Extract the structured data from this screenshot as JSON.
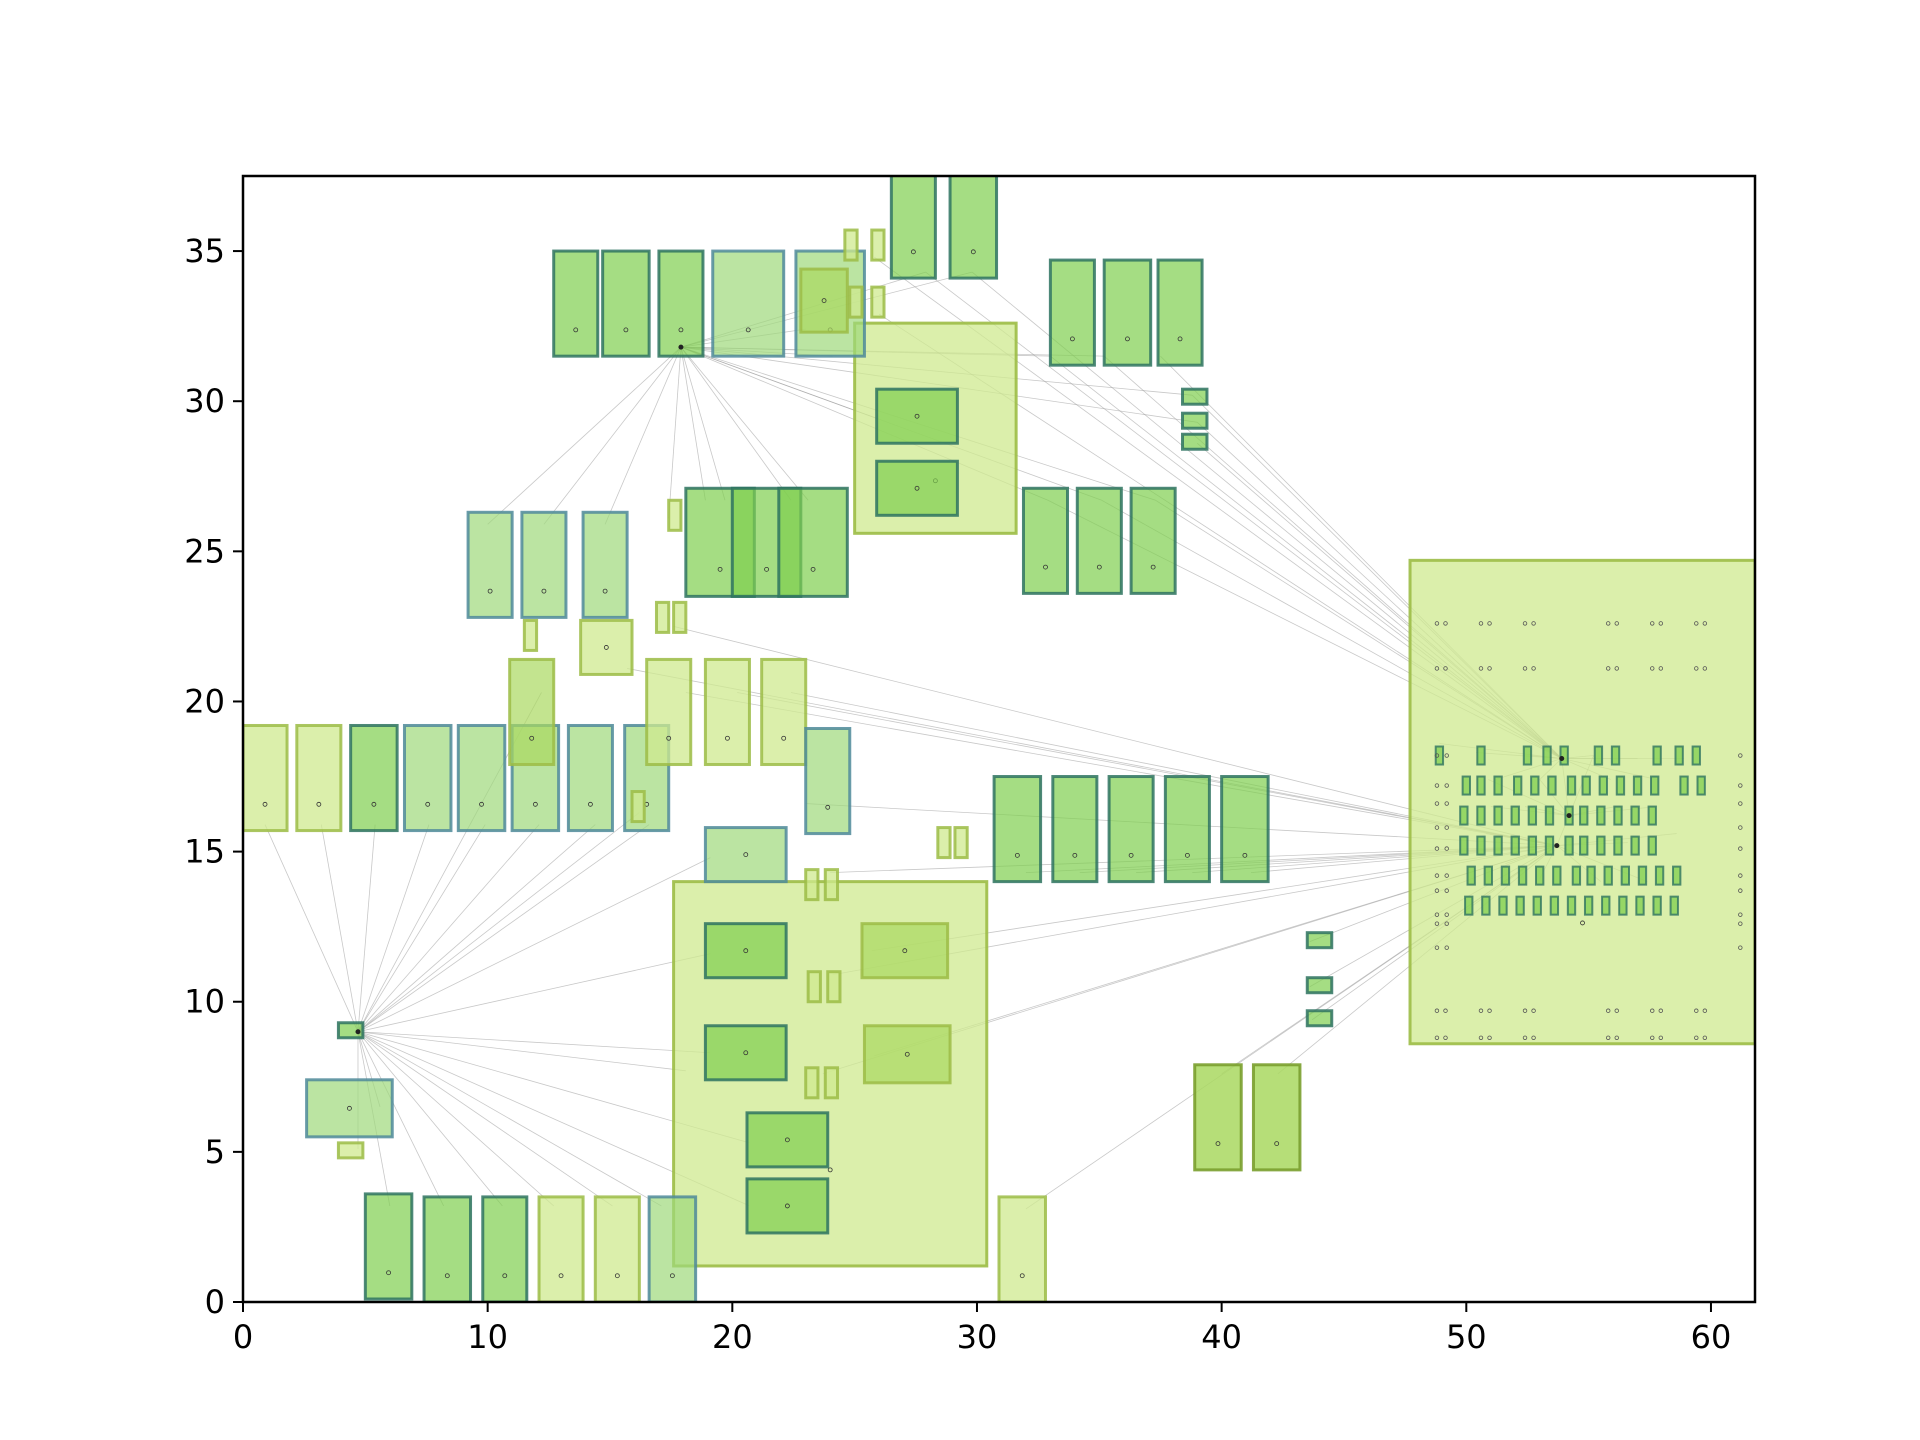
{
  "chart_data": {
    "type": "scatter",
    "title": "",
    "xlabel": "",
    "ylabel": "",
    "xlim": [
      0,
      61.8
    ],
    "ylim": [
      0,
      37.5
    ],
    "grid": false,
    "x_ticks": [
      0,
      10,
      20,
      30,
      40,
      50,
      60
    ],
    "y_ticks": [
      0,
      5,
      10,
      15,
      20,
      25,
      30,
      35
    ],
    "colors": {
      "fill_dark": "#7fcf4f",
      "fill_mid": "#9ed97a",
      "fill_light": "#cfe98f",
      "edge_teal": "#2e7360",
      "edge_blue": "#4f8a9a",
      "edge_olive": "#9cbc46",
      "net_line": "#9a9a9a"
    },
    "blocks": [
      {
        "x": 0.0,
        "y": 15.7,
        "w": 1.8,
        "h": 3.5,
        "style": "light"
      },
      {
        "x": 2.2,
        "y": 15.7,
        "w": 1.8,
        "h": 3.5,
        "style": "light"
      },
      {
        "x": 4.4,
        "y": 15.7,
        "w": 1.9,
        "h": 3.5,
        "style": "dark"
      },
      {
        "x": 6.6,
        "y": 15.7,
        "w": 1.9,
        "h": 3.5,
        "style": "mid"
      },
      {
        "x": 8.8,
        "y": 15.7,
        "w": 1.9,
        "h": 3.5,
        "style": "mid"
      },
      {
        "x": 11.0,
        "y": 15.7,
        "w": 1.9,
        "h": 3.5,
        "style": "mid"
      },
      {
        "x": 13.3,
        "y": 15.7,
        "w": 1.8,
        "h": 3.5,
        "style": "mid"
      },
      {
        "x": 15.6,
        "y": 15.7,
        "w": 1.8,
        "h": 3.5,
        "style": "mid"
      },
      {
        "x": 10.9,
        "y": 17.9,
        "w": 1.8,
        "h": 3.5,
        "style": "lightdark"
      },
      {
        "x": 16.5,
        "y": 17.9,
        "w": 1.8,
        "h": 3.5,
        "style": "light"
      },
      {
        "x": 18.9,
        "y": 17.9,
        "w": 1.8,
        "h": 3.5,
        "style": "light"
      },
      {
        "x": 21.2,
        "y": 17.9,
        "w": 1.8,
        "h": 3.5,
        "style": "light"
      },
      {
        "x": 13.8,
        "y": 20.9,
        "w": 2.1,
        "h": 1.8,
        "style": "light"
      },
      {
        "x": 11.5,
        "y": 21.7,
        "w": 0.5,
        "h": 1.0,
        "style": "light"
      },
      {
        "x": 16.9,
        "y": 22.3,
        "w": 0.5,
        "h": 1.0,
        "style": "light"
      },
      {
        "x": 17.6,
        "y": 22.3,
        "w": 0.5,
        "h": 1.0,
        "style": "light"
      },
      {
        "x": 15.9,
        "y": 16.0,
        "w": 0.5,
        "h": 1.0,
        "style": "light"
      },
      {
        "x": 9.2,
        "y": 22.8,
        "w": 1.8,
        "h": 3.5,
        "style": "mid"
      },
      {
        "x": 11.4,
        "y": 22.8,
        "w": 1.8,
        "h": 3.5,
        "style": "mid"
      },
      {
        "x": 13.9,
        "y": 22.8,
        "w": 1.8,
        "h": 3.5,
        "style": "mid"
      },
      {
        "x": 17.4,
        "y": 25.7,
        "w": 0.5,
        "h": 1.0,
        "style": "light"
      },
      {
        "x": 18.1,
        "y": 23.5,
        "w": 2.8,
        "h": 3.6,
        "style": "dark"
      },
      {
        "x": 20.0,
        "y": 23.5,
        "w": 2.8,
        "h": 3.6,
        "style": "dark"
      },
      {
        "x": 21.9,
        "y": 23.5,
        "w": 2.8,
        "h": 3.6,
        "style": "dark"
      },
      {
        "x": 12.7,
        "y": 31.5,
        "w": 1.8,
        "h": 3.5,
        "style": "dark"
      },
      {
        "x": 14.7,
        "y": 31.5,
        "w": 1.9,
        "h": 3.5,
        "style": "dark"
      },
      {
        "x": 17.0,
        "y": 31.5,
        "w": 1.8,
        "h": 3.5,
        "style": "dark"
      },
      {
        "x": 19.2,
        "y": 31.5,
        "w": 2.9,
        "h": 3.5,
        "style": "mid"
      },
      {
        "x": 22.6,
        "y": 31.5,
        "w": 2.8,
        "h": 3.5,
        "style": "mid"
      },
      {
        "x": 22.8,
        "y": 32.3,
        "w": 1.9,
        "h": 2.1,
        "style": "lightdark"
      },
      {
        "x": 24.6,
        "y": 34.7,
        "w": 0.5,
        "h": 1.0,
        "style": "light"
      },
      {
        "x": 25.7,
        "y": 34.7,
        "w": 0.5,
        "h": 1.0,
        "style": "light"
      },
      {
        "x": 24.8,
        "y": 32.8,
        "w": 0.5,
        "h": 1.0,
        "style": "light"
      },
      {
        "x": 25.7,
        "y": 32.8,
        "w": 0.5,
        "h": 1.0,
        "style": "light"
      },
      {
        "x": 26.5,
        "y": 34.1,
        "w": 1.8,
        "h": 3.5,
        "style": "dark"
      },
      {
        "x": 28.9,
        "y": 34.1,
        "w": 1.9,
        "h": 3.5,
        "style": "dark"
      },
      {
        "x": 25.0,
        "y": 25.6,
        "w": 6.6,
        "h": 7.0,
        "style": "bigplate"
      },
      {
        "x": 25.9,
        "y": 28.6,
        "w": 3.3,
        "h": 1.8,
        "style": "dark"
      },
      {
        "x": 25.9,
        "y": 26.2,
        "w": 3.3,
        "h": 1.8,
        "style": "dark"
      },
      {
        "x": 33.0,
        "y": 31.2,
        "w": 1.8,
        "h": 3.5,
        "style": "dark"
      },
      {
        "x": 35.2,
        "y": 31.2,
        "w": 1.9,
        "h": 3.5,
        "style": "dark"
      },
      {
        "x": 37.4,
        "y": 31.2,
        "w": 1.8,
        "h": 3.5,
        "style": "dark"
      },
      {
        "x": 38.4,
        "y": 29.9,
        "w": 1.0,
        "h": 0.5,
        "style": "dark"
      },
      {
        "x": 38.4,
        "y": 29.1,
        "w": 1.0,
        "h": 0.5,
        "style": "dark"
      },
      {
        "x": 38.4,
        "y": 28.4,
        "w": 1.0,
        "h": 0.5,
        "style": "dark"
      },
      {
        "x": 31.9,
        "y": 23.6,
        "w": 1.8,
        "h": 3.5,
        "style": "dark"
      },
      {
        "x": 34.1,
        "y": 23.6,
        "w": 1.8,
        "h": 3.5,
        "style": "dark"
      },
      {
        "x": 36.3,
        "y": 23.6,
        "w": 1.8,
        "h": 3.5,
        "style": "dark"
      },
      {
        "x": 23.0,
        "y": 15.6,
        "w": 1.8,
        "h": 3.5,
        "style": "mid"
      },
      {
        "x": 18.9,
        "y": 14.0,
        "w": 3.3,
        "h": 1.8,
        "style": "mid"
      },
      {
        "x": 28.4,
        "y": 14.8,
        "w": 0.5,
        "h": 1.0,
        "style": "light"
      },
      {
        "x": 29.1,
        "y": 14.8,
        "w": 0.5,
        "h": 1.0,
        "style": "light"
      },
      {
        "x": 30.7,
        "y": 14.0,
        "w": 1.9,
        "h": 3.5,
        "style": "dark"
      },
      {
        "x": 33.1,
        "y": 14.0,
        "w": 1.8,
        "h": 3.5,
        "style": "dark"
      },
      {
        "x": 35.4,
        "y": 14.0,
        "w": 1.8,
        "h": 3.5,
        "style": "dark"
      },
      {
        "x": 37.7,
        "y": 14.0,
        "w": 1.8,
        "h": 3.5,
        "style": "dark"
      },
      {
        "x": 40.0,
        "y": 14.0,
        "w": 1.9,
        "h": 3.5,
        "style": "dark"
      },
      {
        "x": 17.6,
        "y": 1.2,
        "w": 12.8,
        "h": 12.8,
        "style": "bigplate"
      },
      {
        "x": 23.0,
        "y": 13.4,
        "w": 0.5,
        "h": 1.0,
        "style": "light"
      },
      {
        "x": 23.8,
        "y": 13.4,
        "w": 0.5,
        "h": 1.0,
        "style": "light"
      },
      {
        "x": 18.9,
        "y": 10.8,
        "w": 3.3,
        "h": 1.8,
        "style": "dark"
      },
      {
        "x": 25.3,
        "y": 10.8,
        "w": 3.5,
        "h": 1.8,
        "style": "lightdark"
      },
      {
        "x": 23.1,
        "y": 10.0,
        "w": 0.5,
        "h": 1.0,
        "style": "light"
      },
      {
        "x": 23.9,
        "y": 10.0,
        "w": 0.5,
        "h": 1.0,
        "style": "light"
      },
      {
        "x": 18.9,
        "y": 7.4,
        "w": 3.3,
        "h": 1.8,
        "style": "dark"
      },
      {
        "x": 25.4,
        "y": 7.3,
        "w": 3.5,
        "h": 1.9,
        "style": "lightdark"
      },
      {
        "x": 23.0,
        "y": 6.8,
        "w": 0.5,
        "h": 1.0,
        "style": "light"
      },
      {
        "x": 23.8,
        "y": 6.8,
        "w": 0.5,
        "h": 1.0,
        "style": "light"
      },
      {
        "x": 20.6,
        "y": 4.5,
        "w": 3.3,
        "h": 1.8,
        "style": "dark"
      },
      {
        "x": 20.6,
        "y": 2.3,
        "w": 3.3,
        "h": 1.8,
        "style": "dark"
      },
      {
        "x": 3.9,
        "y": 8.8,
        "w": 1.0,
        "h": 0.5,
        "style": "dark"
      },
      {
        "x": 2.6,
        "y": 5.5,
        "w": 3.5,
        "h": 1.9,
        "style": "mid"
      },
      {
        "x": 3.9,
        "y": 4.8,
        "w": 1.0,
        "h": 0.5,
        "style": "light"
      },
      {
        "x": 5.0,
        "y": 0.1,
        "w": 1.9,
        "h": 3.5,
        "style": "dark"
      },
      {
        "x": 7.4,
        "y": 0.0,
        "w": 1.9,
        "h": 3.5,
        "style": "dark"
      },
      {
        "x": 9.8,
        "y": 0.0,
        "w": 1.8,
        "h": 3.5,
        "style": "dark"
      },
      {
        "x": 12.1,
        "y": 0.0,
        "w": 1.8,
        "h": 3.5,
        "style": "light"
      },
      {
        "x": 14.4,
        "y": 0.0,
        "w": 1.8,
        "h": 3.5,
        "style": "light"
      },
      {
        "x": 16.6,
        "y": 0.0,
        "w": 1.9,
        "h": 3.5,
        "style": "mid"
      },
      {
        "x": 30.9,
        "y": 0.0,
        "w": 1.9,
        "h": 3.5,
        "style": "light"
      },
      {
        "x": 38.9,
        "y": 4.4,
        "w": 1.9,
        "h": 3.5,
        "style": "olive"
      },
      {
        "x": 41.3,
        "y": 4.4,
        "w": 1.9,
        "h": 3.5,
        "style": "olive"
      },
      {
        "x": 43.5,
        "y": 11.8,
        "w": 1.0,
        "h": 0.5,
        "style": "dark"
      },
      {
        "x": 43.5,
        "y": 10.3,
        "w": 1.0,
        "h": 0.5,
        "style": "dark"
      },
      {
        "x": 43.5,
        "y": 9.2,
        "w": 1.0,
        "h": 0.5,
        "style": "dark"
      },
      {
        "x": 47.7,
        "y": 8.6,
        "w": 14.1,
        "h": 16.1,
        "style": "bigplate"
      }
    ],
    "hubs": [
      {
        "x": 17.9,
        "y": 31.8
      },
      {
        "x": 4.7,
        "y": 9.0
      },
      {
        "x": 53.9,
        "y": 18.1
      },
      {
        "x": 53.7,
        "y": 15.2
      },
      {
        "x": 54.2,
        "y": 16.2
      }
    ],
    "nets": [
      {
        "from": [
          17.9,
          31.8
        ],
        "to": [
          [
            10.0,
            25.9
          ],
          [
            12.3,
            25.9
          ],
          [
            14.8,
            25.9
          ],
          [
            17.4,
            26.1
          ],
          [
            18.9,
            26.7
          ],
          [
            19.7,
            26.7
          ],
          [
            22.4,
            26.7
          ],
          [
            23.1,
            26.7
          ],
          [
            23.0,
            32.4
          ],
          [
            24.1,
            31.5
          ],
          [
            26.0,
            29.4
          ],
          [
            27.9,
            34.3
          ],
          [
            29.8,
            34.3
          ],
          [
            33.0,
            31.5
          ],
          [
            35.2,
            31.5
          ],
          [
            38.8,
            30.2
          ],
          [
            39.0,
            29.3
          ],
          [
            32.9,
            26.7
          ],
          [
            35.1,
            26.7
          ],
          [
            37.3,
            26.7
          ]
        ]
      },
      {
        "from": [
          4.7,
          9.0
        ],
        "to": [
          [
            0.9,
            15.9
          ],
          [
            3.2,
            15.9
          ],
          [
            5.4,
            15.9
          ],
          [
            7.6,
            15.9
          ],
          [
            9.9,
            15.9
          ],
          [
            12.1,
            15.9
          ],
          [
            14.4,
            15.9
          ],
          [
            16.6,
            15.9
          ],
          [
            12.2,
            20.3
          ],
          [
            16.2,
            16.3
          ],
          [
            19.1,
            14.8
          ],
          [
            19.1,
            11.6
          ],
          [
            19.1,
            8.3
          ],
          [
            20.7,
            5.3
          ],
          [
            20.7,
            3.2
          ],
          [
            6.0,
            3.2
          ],
          [
            8.2,
            3.2
          ],
          [
            10.6,
            3.2
          ],
          [
            12.7,
            3.2
          ],
          [
            15.1,
            3.2
          ],
          [
            17.1,
            3.2
          ],
          [
            18.1,
            7.7
          ],
          [
            4.7,
            5.1
          ],
          [
            5.6,
            6.5
          ]
        ]
      },
      {
        "from": [
          53.9,
          18.1
        ],
        "to": [
          [
            27.9,
            34.3
          ],
          [
            29.8,
            34.3
          ],
          [
            33.0,
            31.5
          ],
          [
            35.2,
            31.5
          ],
          [
            37.5,
            31.5
          ],
          [
            38.8,
            30.2
          ],
          [
            39.0,
            29.3
          ],
          [
            39.0,
            28.6
          ],
          [
            32.9,
            26.7
          ],
          [
            35.1,
            26.7
          ],
          [
            37.3,
            26.7
          ],
          [
            25.8,
            34.8
          ],
          [
            26.0,
            32.9
          ],
          [
            48.9,
            18.6
          ],
          [
            50.4,
            18.3
          ],
          [
            52.6,
            18.2
          ],
          [
            55.2,
            18.2
          ],
          [
            57.0,
            18.1
          ],
          [
            58.9,
            18.1
          ],
          [
            51.2,
            17.4
          ],
          [
            53.0,
            17.4
          ],
          [
            55.9,
            17.4
          ],
          [
            57.8,
            17.4
          ]
        ]
      },
      {
        "from": [
          53.7,
          15.2
        ],
        "to": [
          [
            24.0,
            14.3
          ],
          [
            32.0,
            14.3
          ],
          [
            34.2,
            14.3
          ],
          [
            36.5,
            14.3
          ],
          [
            38.8,
            14.3
          ],
          [
            41.2,
            14.3
          ],
          [
            24.1,
            10.9
          ],
          [
            25.7,
            11.7
          ],
          [
            23.7,
            7.6
          ],
          [
            25.8,
            8.2
          ],
          [
            32.0,
            3.1
          ],
          [
            40.0,
            7.6
          ],
          [
            42.3,
            7.6
          ],
          [
            43.6,
            12.0
          ],
          [
            43.6,
            10.5
          ],
          [
            43.7,
            9.4
          ],
          [
            23.0,
            16.6
          ],
          [
            18.1,
            20.3
          ],
          [
            20.2,
            20.3
          ],
          [
            22.4,
            20.3
          ],
          [
            15.7,
            21.1
          ],
          [
            17.6,
            22.5
          ],
          [
            51.6,
            14.6
          ],
          [
            53.0,
            14.1
          ],
          [
            55.5,
            14.0
          ],
          [
            57.4,
            14.0
          ],
          [
            50.8,
            15.6
          ],
          [
            56.6,
            15.3
          ],
          [
            58.6,
            15.6
          ]
        ]
      },
      {
        "from": [
          54.2,
          16.2
        ],
        "to": [
          [
            51.0,
            16.5
          ],
          [
            52.4,
            16.5
          ],
          [
            56.1,
            16.5
          ],
          [
            57.8,
            16.5
          ],
          [
            53.0,
            17.4
          ],
          [
            50.9,
            17.4
          ],
          [
            55.2,
            18.2
          ],
          [
            53.7,
            15.2
          ],
          [
            53.9,
            18.1
          ]
        ]
      }
    ],
    "plate_pads": {
      "block_x": [
        48.8,
        50.6,
        52.4,
        55.8,
        57.6,
        59.4
      ],
      "block_y": [
        22.6,
        21.1,
        9.7,
        8.8
      ],
      "pair_offset": 0.35,
      "side_columns": [
        48.8,
        49.2,
        61.2
      ],
      "side_rows": [
        18.2,
        17.2,
        16.6,
        15.8,
        15.1,
        14.2,
        13.7,
        12.9,
        12.6,
        11.8
      ]
    },
    "footprint_grid": {
      "rows": [
        {
          "y": 18.2,
          "x": [
            48.9,
            50.6,
            52.5,
            53.3,
            54.0,
            55.4,
            56.1,
            57.8,
            58.7,
            59.4
          ]
        },
        {
          "y": 17.2,
          "x": [
            50.0,
            50.6,
            51.3,
            52.1,
            52.8,
            53.5,
            54.3,
            54.9,
            55.6,
            56.3,
            57.0,
            57.7,
            58.9,
            59.6
          ]
        },
        {
          "y": 16.2,
          "x": [
            49.9,
            50.6,
            51.3,
            52.0,
            52.7,
            53.4,
            54.2,
            54.8,
            55.5,
            56.2,
            56.9,
            57.6
          ]
        },
        {
          "y": 15.2,
          "x": [
            49.9,
            50.6,
            51.3,
            52.0,
            52.7,
            53.4,
            54.2,
            54.8,
            55.5,
            56.2,
            56.9,
            57.6
          ]
        },
        {
          "y": 14.2,
          "x": [
            50.2,
            50.9,
            51.6,
            52.3,
            53.0,
            53.7,
            54.5,
            55.1,
            55.8,
            56.5,
            57.2,
            57.9,
            58.6
          ]
        },
        {
          "y": 13.2,
          "x": [
            50.1,
            50.8,
            51.5,
            52.2,
            52.9,
            53.6,
            54.3,
            55.0,
            55.7,
            56.4,
            57.1,
            57.8,
            58.5
          ]
        }
      ],
      "w": 0.3,
      "h": 0.6
    }
  }
}
